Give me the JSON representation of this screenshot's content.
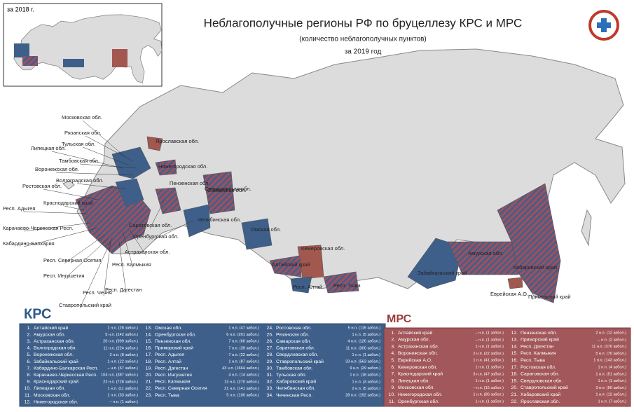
{
  "inset": {
    "label": "за 2018 г."
  },
  "header": {
    "title": "Неблагополучные регионы РФ по бруцеллезу КРС и МРС",
    "subtitle": "(количество неблагополучных пунктов)",
    "period": "за 2019 год"
  },
  "map_labels": [
    "Московская обл.",
    "Рязанская обл.",
    "Тульская обл.",
    "Липецкая обл.",
    "Тамбовская обл.",
    "Воронежская обл.",
    "Волгоградская обл.",
    "Ростовская обл.",
    "Краснодарский край",
    "Респ. Адыгея",
    "Карачаево-Черкесская Респ.",
    "Кабардино-Балкария",
    "Респ. Северная Осетия",
    "Респ. Ингушетия",
    "Респ. Чечня",
    "Ставропольский край",
    "Респ. Дагестан",
    "Респ. Калмыкия",
    "Астраханская обл.",
    "Саратовская обл.",
    "Оренбургская обл.",
    "Ярославская обл.",
    "Нижегородская обл.",
    "Пензенская обл.",
    "Самарская обл.",
    "Свердловская обл.",
    "Челябинская обл.",
    "Омская обл.",
    "Кемеровская обл.",
    "Алтайский край",
    "Респ. Алтай",
    "Респ. Тыва",
    "Забайкальский край",
    "Амурская обл.",
    "Хабаровский край",
    "Еврейская А.О.",
    "Приморский край"
  ],
  "krs": {
    "title": "КРС",
    "rows": [
      [
        "1.",
        "Алтайский край",
        "1 н.п. (28 забол.)"
      ],
      [
        "2.",
        "Амурская обл.",
        "5 н.п. (142 забол.)"
      ],
      [
        "3.",
        "Астраханская обл.",
        "20 н.п. (999 забол.)"
      ],
      [
        "4.",
        "Волгоградская обл.",
        "11 н.п. (224 забол.)"
      ],
      [
        "5.",
        "Воронежская обл.",
        "2 н.п. (8 забол.)"
      ],
      [
        "6.",
        "Забайкальский край",
        "1 н.п. (22 забол.)"
      ],
      [
        "7.",
        "Кабардино-Балкарская Респ.",
        "– н.п. (67 забол.)"
      ],
      [
        "8.",
        "Карачаево-Черкесская Респ.",
        "104 н.п. (387 забол.)"
      ],
      [
        "9.",
        "Краснодарский край",
        "22 н.п. (728 забол.)"
      ],
      [
        "10.",
        "Липецкая обл.",
        "1 н.п. (11 забол.)"
      ],
      [
        "11.",
        "Московская обл.",
        "1 н.п. (33 забол.)"
      ],
      [
        "12.",
        "Нижегородская обл.",
        "– н.п. (1 забол.)"
      ],
      [
        "13.",
        "Омская обл.",
        "1 н.п. (47 забол.)"
      ],
      [
        "14.",
        "Оренбургская обл.",
        "6 н.п. (201 забол.)"
      ],
      [
        "15.",
        "Пензенская обл.",
        "7 н.п. (60 забол.)"
      ],
      [
        "16.",
        "Приморский край",
        "7 н.п. (39 забол.)"
      ],
      [
        "17.",
        "Респ. Адыгея",
        "7 н.п. (22 забол.)"
      ],
      [
        "18.",
        "Респ. Алтай",
        "1 н.п. (87 забол.)"
      ],
      [
        "19.",
        "Респ. Дагестан",
        "43 н.п. (1664 забол.)"
      ],
      [
        "20.",
        "Респ. Ингушетия",
        "4 н.п. (14 забол.)"
      ],
      [
        "21.",
        "Респ. Калмыкия",
        "13 н.п. (270 забол.)"
      ],
      [
        "22.",
        "Респ. Северная Осетия",
        "21 н.п. (141 забол.)"
      ],
      [
        "23.",
        "Респ. Тыва",
        "5 н.п. (100 забол.)"
      ],
      [
        "24.",
        "Ростовская обл.",
        "5 н.п. (116 забол.)"
      ],
      [
        "25.",
        "Рязанская обл.",
        "1 н.п. (5 забол.)"
      ],
      [
        "26.",
        "Самарская обл.",
        "4 н.п. (126 забол.)"
      ],
      [
        "27.",
        "Саратовская обл.",
        "11 н.п. (300 забол.)"
      ],
      [
        "28.",
        "Свердловская обл.",
        "1 н.п. (1 забол.)"
      ],
      [
        "29.",
        "Ставропольский край",
        "33 н.п. (563 забол.)"
      ],
      [
        "30.",
        "Тамбовская обл.",
        "9 н.п. (29 забол.)"
      ],
      [
        "31.",
        "Тульская обл.",
        "1 н.п. (18 забол.)"
      ],
      [
        "32.",
        "Хабаровский край",
        "1 н.п. (3 забол.)"
      ],
      [
        "33.",
        "Челябинская обл.",
        "2 н.п. (5 забол.)"
      ],
      [
        "34.",
        "Чеченская Респ.",
        "28 н.п. (192 забол.)"
      ]
    ]
  },
  "mrs": {
    "title": "МРС",
    "rows": [
      [
        "1.",
        "Алтайский край",
        "– н.п. (1 забол.)"
      ],
      [
        "2.",
        "Амурская обл.",
        "– н.п. (1 забол.)"
      ],
      [
        "3.",
        "Астраханская обл.",
        "1 н.п. (1 забол.)"
      ],
      [
        "4.",
        "Воронежская обл.",
        "2 н.п. (22 забол.)"
      ],
      [
        "5.",
        "Еврейская А.О.",
        "1 н.п. (41 забол.)"
      ],
      [
        "6.",
        "Кемеровская обл.",
        "1 н.п. (1 забол.)"
      ],
      [
        "7.",
        "Краснодарский край",
        "3 н.п. (47 забол.)"
      ],
      [
        "8.",
        "Липецкая обл.",
        "1 н.п. (1 забол.)"
      ],
      [
        "9.",
        "Московская обл.",
        "– н.п. (15 забол.)"
      ],
      [
        "10.",
        "Нижегородская обл.",
        "1 н.п. (86 забол.)"
      ],
      [
        "11.",
        "Оренбургская обл.",
        "1 н.п. (1 забол.)"
      ],
      [
        "12.",
        "Пензенская обл.",
        "2 н.п. (12 забол.)"
      ],
      [
        "13.",
        "Приморский край",
        "– н.п. (2 забол.)"
      ],
      [
        "14.",
        "Респ. Дагестан",
        "11 н.п. (370 забол.)"
      ],
      [
        "15.",
        "Респ. Калмыкия",
        "5 н.п. (70 забол.)"
      ],
      [
        "16.",
        "Респ. Тыва",
        "1 н.п. (143 забол.)"
      ],
      [
        "17.",
        "Ростовская обл.",
        "1 н.п. (4 забол.)"
      ],
      [
        "18.",
        "Саратовская обл.",
        "1 н.п. (51 забол.)"
      ],
      [
        "19.",
        "Свердловская обл.",
        "1 н.п. (1 забол.)"
      ],
      [
        "20.",
        "Ставропольский край",
        "3 н.п. (50 забол.)"
      ],
      [
        "21.",
        "Хабаровский край",
        "1 н.п. (12 забол.)"
      ],
      [
        "22.",
        "Ярославская обл.",
        "1 н.п. (7 забол.)"
      ]
    ]
  }
}
